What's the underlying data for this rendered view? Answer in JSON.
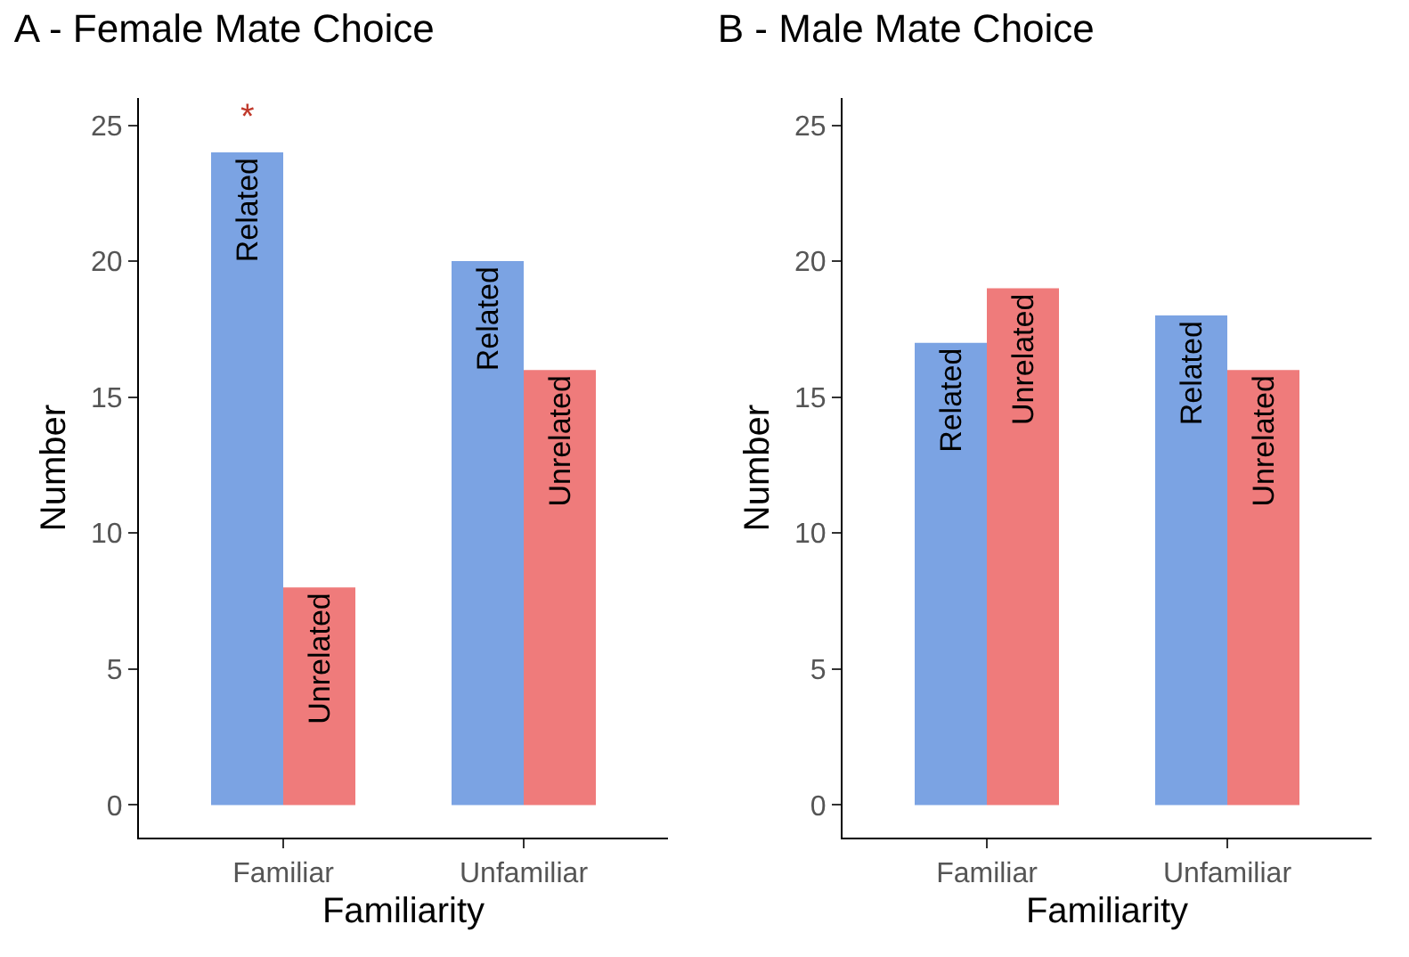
{
  "chart_data": [
    {
      "type": "bar",
      "title": "A - Female Mate Choice",
      "xlabel": "Familiarity",
      "ylabel": "Number",
      "categories": [
        "Familiar",
        "Unfamiliar"
      ],
      "series": [
        {
          "name": "Related",
          "color": "#7ba3e3",
          "values": [
            24,
            20
          ]
        },
        {
          "name": "Unrelated",
          "color": "#ef7b7b",
          "values": [
            8,
            16
          ]
        }
      ],
      "ylim": [
        -1.2,
        26
      ],
      "yticks": [
        0,
        5,
        10,
        15,
        20,
        25
      ],
      "grid": false,
      "legend": false,
      "annotations": [
        "*"
      ]
    },
    {
      "type": "bar",
      "title": "B - Male Mate Choice",
      "xlabel": "Familiarity",
      "ylabel": "Number",
      "categories": [
        "Familiar",
        "Unfamiliar"
      ],
      "series": [
        {
          "name": "Related",
          "color": "#7ba3e3",
          "values": [
            17,
            18
          ]
        },
        {
          "name": "Unrelated",
          "color": "#ef7b7b",
          "values": [
            19,
            16
          ]
        }
      ],
      "ylim": [
        -1.2,
        26
      ],
      "yticks": [
        0,
        5,
        10,
        15,
        20,
        25
      ],
      "grid": false,
      "legend": false
    }
  ]
}
